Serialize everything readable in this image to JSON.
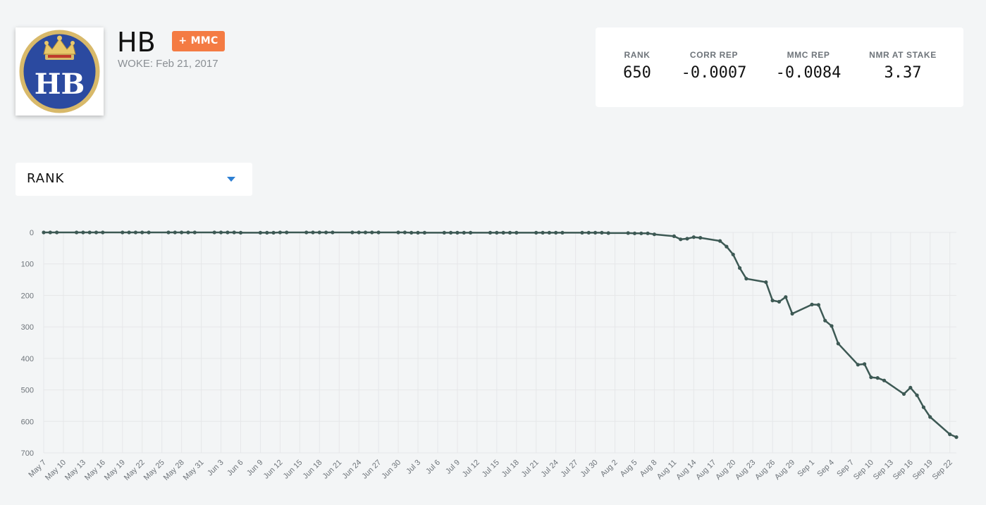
{
  "header": {
    "name": "HB",
    "badge": "+ MMC",
    "woke": "WOKE: Feb 21, 2017",
    "logo_text": "HB"
  },
  "stats": [
    {
      "label": "RANK",
      "value": "650"
    },
    {
      "label": "CORR REP",
      "value": "-0.0007"
    },
    {
      "label": "MMC REP",
      "value": "-0.0084"
    },
    {
      "label": "NMR AT STAKE",
      "value": "3.37"
    }
  ],
  "metric_select": {
    "value": "RANK"
  },
  "colors": {
    "line": "#3d5954",
    "badge": "#f47b43",
    "caret": "#2d7fd3",
    "grid": "#e6e7e9",
    "background": "#f3f5f6"
  },
  "chart_data": {
    "type": "line",
    "ylim": [
      0,
      700
    ],
    "y_inverted": true,
    "yticks": [
      0,
      100,
      200,
      300,
      400,
      500,
      600,
      700
    ],
    "x_start": "2020-05-07",
    "x_end": "2020-09-23",
    "xticks": [
      "May 7",
      "May 10",
      "May 13",
      "May 16",
      "May 19",
      "May 22",
      "May 25",
      "May 28",
      "May 31",
      "Jun 3",
      "Jun 6",
      "Jun 9",
      "Jun 12",
      "Jun 15",
      "Jun 18",
      "Jun 21",
      "Jun 24",
      "Jun 27",
      "Jun 30",
      "Jul 3",
      "Jul 6",
      "Jul 9",
      "Jul 12",
      "Jul 15",
      "Jul 18",
      "Jul 21",
      "Jul 24",
      "Jul 27",
      "Jul 30",
      "Aug 2",
      "Aug 5",
      "Aug 8",
      "Aug 11",
      "Aug 14",
      "Aug 17",
      "Aug 20",
      "Aug 23",
      "Aug 26",
      "Aug 29",
      "Sep 1",
      "Sep 4",
      "Sep 7",
      "Sep 10",
      "Sep 13",
      "Sep 16",
      "Sep 19",
      "Sep 22"
    ],
    "x": [
      "2020-05-07",
      "2020-05-08",
      "2020-05-09",
      "2020-05-12",
      "2020-05-13",
      "2020-05-14",
      "2020-05-15",
      "2020-05-16",
      "2020-05-19",
      "2020-05-20",
      "2020-05-21",
      "2020-05-22",
      "2020-05-23",
      "2020-05-26",
      "2020-05-27",
      "2020-05-28",
      "2020-05-29",
      "2020-05-30",
      "2020-06-02",
      "2020-06-03",
      "2020-06-04",
      "2020-06-05",
      "2020-06-06",
      "2020-06-09",
      "2020-06-10",
      "2020-06-11",
      "2020-06-12",
      "2020-06-13",
      "2020-06-16",
      "2020-06-17",
      "2020-06-18",
      "2020-06-19",
      "2020-06-20",
      "2020-06-23",
      "2020-06-24",
      "2020-06-25",
      "2020-06-26",
      "2020-06-27",
      "2020-06-30",
      "2020-07-01",
      "2020-07-02",
      "2020-07-03",
      "2020-07-04",
      "2020-07-07",
      "2020-07-08",
      "2020-07-09",
      "2020-07-10",
      "2020-07-11",
      "2020-07-14",
      "2020-07-15",
      "2020-07-16",
      "2020-07-17",
      "2020-07-18",
      "2020-07-21",
      "2020-07-22",
      "2020-07-23",
      "2020-07-24",
      "2020-07-25",
      "2020-07-28",
      "2020-07-29",
      "2020-07-30",
      "2020-07-31",
      "2020-08-01",
      "2020-08-04",
      "2020-08-05",
      "2020-08-06",
      "2020-08-07",
      "2020-08-08",
      "2020-08-11",
      "2020-08-12",
      "2020-08-13",
      "2020-08-14",
      "2020-08-15",
      "2020-08-18",
      "2020-08-19",
      "2020-08-20",
      "2020-08-21",
      "2020-08-22",
      "2020-08-25",
      "2020-08-26",
      "2020-08-27",
      "2020-08-28",
      "2020-08-29",
      "2020-09-01",
      "2020-09-02",
      "2020-09-03",
      "2020-09-04",
      "2020-09-05",
      "2020-09-08",
      "2020-09-09",
      "2020-09-10",
      "2020-09-11",
      "2020-09-12",
      "2020-09-15",
      "2020-09-16",
      "2020-09-17",
      "2020-09-18",
      "2020-09-19",
      "2020-09-22",
      "2020-09-23"
    ],
    "series": [
      {
        "values": [
          0,
          0,
          0,
          0,
          0,
          0,
          0,
          0,
          0,
          0,
          0,
          0,
          0,
          0,
          0,
          0,
          0,
          0,
          0,
          0,
          0,
          0,
          1,
          1,
          1,
          1,
          0,
          0,
          0,
          0,
          0,
          0,
          0,
          0,
          0,
          0,
          0,
          0,
          0,
          0,
          1,
          1,
          1,
          1,
          1,
          1,
          1,
          1,
          1,
          1,
          1,
          1,
          1,
          1,
          1,
          1,
          1,
          1,
          1,
          1,
          1,
          1,
          2,
          2,
          3,
          3,
          3,
          6,
          12,
          22,
          20,
          15,
          17,
          27,
          45,
          70,
          113,
          147,
          158,
          216,
          220,
          205,
          258,
          229,
          230,
          280,
          297,
          353,
          420,
          418,
          460,
          462,
          470,
          513,
          493,
          517,
          555,
          586,
          641,
          650
        ]
      }
    ]
  }
}
